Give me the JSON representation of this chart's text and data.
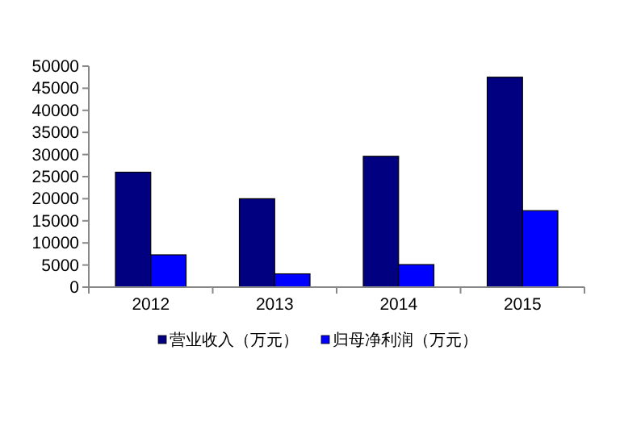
{
  "chart_data": {
    "type": "bar",
    "categories": [
      "2012",
      "2013",
      "2014",
      "2015"
    ],
    "series": [
      {
        "name": "营业收入（万元）",
        "color": "#000080",
        "values": [
          26000,
          20000,
          29600,
          47500
        ]
      },
      {
        "name": "归母净利润（万元）",
        "color": "#0000ff",
        "values": [
          7300,
          3000,
          5100,
          17300
        ]
      }
    ],
    "ylim": [
      0,
      50000
    ],
    "yticks": [
      0,
      5000,
      10000,
      15000,
      20000,
      25000,
      30000,
      35000,
      40000,
      45000,
      50000
    ],
    "grid": false,
    "legend": "bottom"
  }
}
